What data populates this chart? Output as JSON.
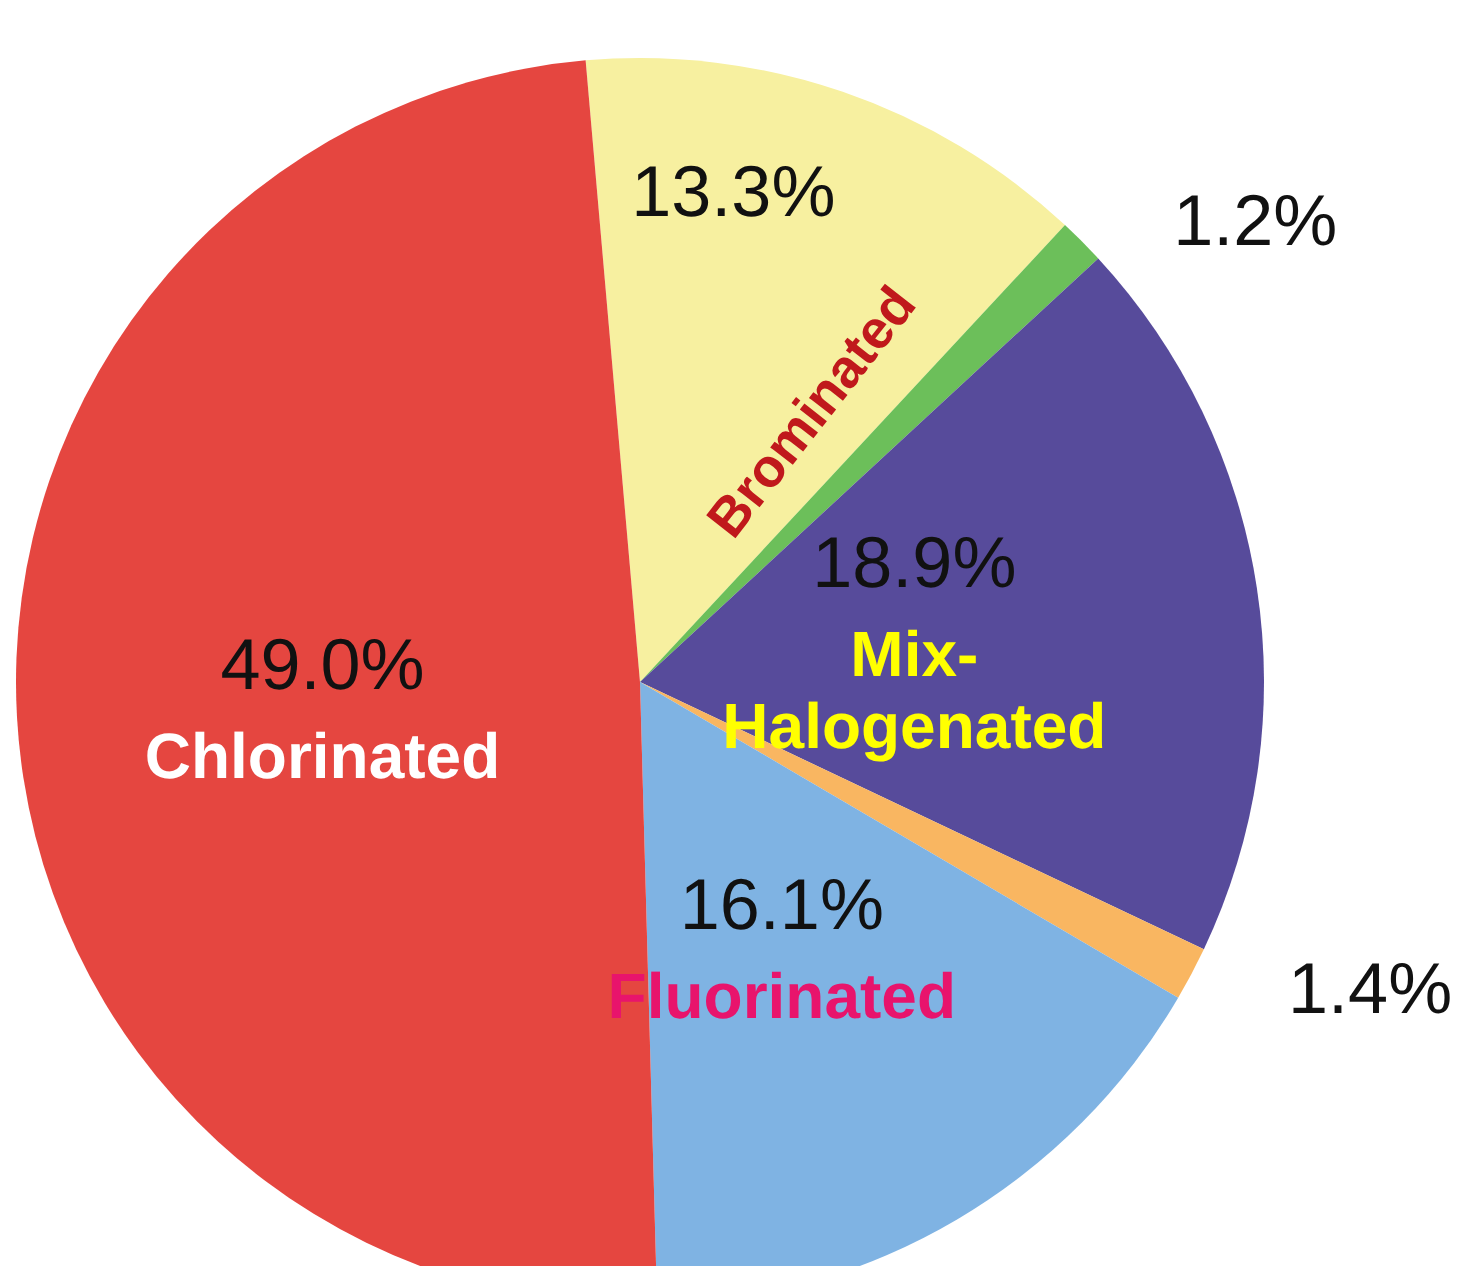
{
  "chart_data": {
    "type": "pie",
    "categories": [
      "Brominated",
      null,
      "Mix-\nHalogenated",
      null,
      "Fluorinated",
      "Chlorinated"
    ],
    "values": [
      13.3,
      1.2,
      18.9,
      1.4,
      16.1,
      49.0
    ],
    "value_labels": [
      "13.3%",
      "1.2%",
      "18.9%",
      "1.4%",
      "16.1%",
      "49.0%"
    ],
    "colors": [
      "#f7f0a0",
      "#6cbf5a",
      "#574b9b",
      "#f9b661",
      "#7fb3e3",
      "#e54640"
    ],
    "legend": false
  }
}
